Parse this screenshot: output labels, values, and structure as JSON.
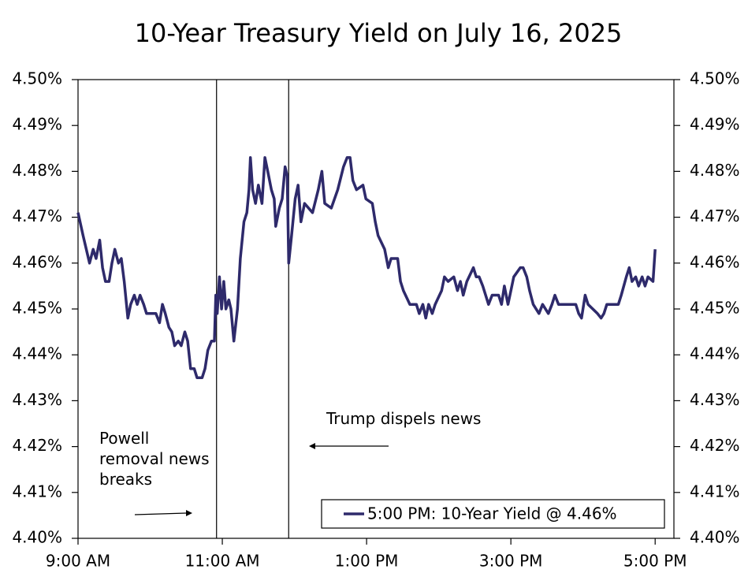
{
  "chart_data": {
    "type": "line",
    "title": "10-Year Treasury Yield on July 16, 2025",
    "xlim": [
      9,
      17.26
    ],
    "xticks": [
      {
        "value": 9,
        "label": "9:00 AM"
      },
      {
        "value": 11,
        "label": "11:00 AM"
      },
      {
        "value": 13,
        "label": "1:00 PM"
      },
      {
        "value": 15,
        "label": "3:00 PM"
      },
      {
        "value": 17,
        "label": "5:00 PM"
      }
    ],
    "ylim": [
      4.4,
      4.5
    ],
    "yticks": [
      {
        "value": 4.4,
        "label": "4.40%"
      },
      {
        "value": 4.41,
        "label": "4.41%"
      },
      {
        "value": 4.42,
        "label": "4.42%"
      },
      {
        "value": 4.43,
        "label": "4.43%"
      },
      {
        "value": 4.44,
        "label": "4.44%"
      },
      {
        "value": 4.45,
        "label": "4.45%"
      },
      {
        "value": 4.46,
        "label": "4.46%"
      },
      {
        "value": 4.47,
        "label": "4.47%"
      },
      {
        "value": 4.48,
        "label": "4.48%"
      },
      {
        "value": 4.49,
        "label": "4.49%"
      },
      {
        "value": 4.5,
        "label": "4.50%"
      }
    ],
    "y2lim": [
      4.4,
      4.5
    ],
    "y2ticks": [
      {
        "value": 4.4,
        "label": "4.40%"
      },
      {
        "value": 4.41,
        "label": "4.41%"
      },
      {
        "value": 4.42,
        "label": "4.42%"
      },
      {
        "value": 4.43,
        "label": "4.43%"
      },
      {
        "value": 4.44,
        "label": "4.44%"
      },
      {
        "value": 4.45,
        "label": "4.45%"
      },
      {
        "value": 4.46,
        "label": "4.46%"
      },
      {
        "value": 4.47,
        "label": "4.47%"
      },
      {
        "value": 4.48,
        "label": "4.48%"
      },
      {
        "value": 4.49,
        "label": "4.49%"
      },
      {
        "value": 4.5,
        "label": "4.50%"
      }
    ],
    "vlines": [
      10.92,
      11.92
    ],
    "annotations": [
      "Powell removal news breaks",
      "Trump dispels news"
    ],
    "legend": "lower right",
    "x": [
      9.0,
      9.07,
      9.16,
      9.21,
      9.25,
      9.3,
      9.34,
      9.38,
      9.43,
      9.47,
      9.51,
      9.56,
      9.6,
      9.64,
      9.69,
      9.73,
      9.78,
      9.82,
      9.86,
      9.91,
      9.95,
      10.08,
      10.13,
      10.17,
      10.21,
      10.26,
      10.3,
      10.34,
      10.39,
      10.43,
      10.48,
      10.52,
      10.56,
      10.61,
      10.65,
      10.72,
      10.76,
      10.8,
      10.85,
      10.89,
      10.91,
      10.93,
      10.96,
      10.99,
      11.02,
      11.05,
      11.09,
      11.12,
      11.16,
      11.21,
      11.25,
      11.3,
      11.34,
      11.37,
      11.39,
      11.42,
      11.46,
      11.5,
      11.55,
      11.59,
      11.63,
      11.68,
      11.72,
      11.74,
      11.79,
      11.83,
      11.87,
      11.9,
      11.92,
      11.96,
      12.01,
      12.05,
      12.09,
      12.14,
      12.25,
      12.33,
      12.38,
      12.42,
      12.51,
      12.6,
      12.68,
      12.73,
      12.77,
      12.81,
      12.86,
      12.95,
      12.99,
      13.08,
      13.12,
      13.16,
      13.25,
      13.3,
      13.34,
      13.43,
      13.47,
      13.51,
      13.6,
      13.69,
      13.73,
      13.78,
      13.82,
      13.86,
      13.91,
      13.95,
      14.04,
      14.08,
      14.13,
      14.21,
      14.26,
      14.3,
      14.34,
      14.39,
      14.48,
      14.52,
      14.56,
      14.61,
      14.69,
      14.74,
      14.83,
      14.87,
      14.91,
      14.96,
      15.0,
      15.04,
      15.13,
      15.17,
      15.22,
      15.26,
      15.31,
      15.39,
      15.44,
      15.52,
      15.57,
      15.61,
      15.66,
      15.9,
      15.94,
      15.98,
      16.03,
      16.07,
      16.2,
      16.25,
      16.29,
      16.33,
      16.49,
      16.53,
      16.6,
      16.64,
      16.68,
      16.73,
      16.77,
      16.82,
      16.86,
      16.9,
      16.97,
      17.0
    ],
    "series": [
      {
        "name": "5:00 PM: 10-Year Yield @ 4.46%",
        "color": "#2e2a6b",
        "values": [
          4.471,
          4.466,
          4.46,
          4.463,
          4.461,
          4.465,
          4.459,
          4.456,
          4.456,
          4.46,
          4.463,
          4.46,
          4.461,
          4.456,
          4.448,
          4.451,
          4.453,
          4.451,
          4.453,
          4.451,
          4.449,
          4.449,
          4.447,
          4.451,
          4.449,
          4.446,
          4.445,
          4.442,
          4.443,
          4.442,
          4.445,
          4.443,
          4.437,
          4.437,
          4.435,
          4.435,
          4.437,
          4.441,
          4.443,
          4.443,
          4.453,
          4.449,
          4.457,
          4.45,
          4.456,
          4.45,
          4.452,
          4.45,
          4.443,
          4.45,
          4.461,
          4.469,
          4.471,
          4.476,
          4.483,
          4.476,
          4.473,
          4.477,
          4.473,
          4.483,
          4.48,
          4.476,
          4.474,
          4.468,
          4.472,
          4.474,
          4.481,
          4.479,
          4.46,
          4.466,
          4.474,
          4.477,
          4.469,
          4.473,
          4.471,
          4.476,
          4.48,
          4.473,
          4.472,
          4.476,
          4.481,
          4.483,
          4.483,
          4.478,
          4.476,
          4.477,
          4.474,
          4.473,
          4.469,
          4.466,
          4.463,
          4.459,
          4.461,
          4.461,
          4.456,
          4.454,
          4.451,
          4.451,
          4.449,
          4.451,
          4.448,
          4.451,
          4.449,
          4.451,
          4.454,
          4.457,
          4.456,
          4.457,
          4.454,
          4.456,
          4.453,
          4.456,
          4.459,
          4.457,
          4.457,
          4.455,
          4.451,
          4.453,
          4.453,
          4.451,
          4.455,
          4.451,
          4.454,
          4.457,
          4.459,
          4.459,
          4.457,
          4.454,
          4.451,
          4.449,
          4.451,
          4.449,
          4.451,
          4.453,
          4.451,
          4.451,
          4.449,
          4.448,
          4.453,
          4.451,
          4.449,
          4.448,
          4.449,
          4.451,
          4.451,
          4.453,
          4.457,
          4.459,
          4.456,
          4.457,
          4.455,
          4.457,
          4.455,
          4.457,
          4.456,
          4.463
        ]
      }
    ]
  }
}
